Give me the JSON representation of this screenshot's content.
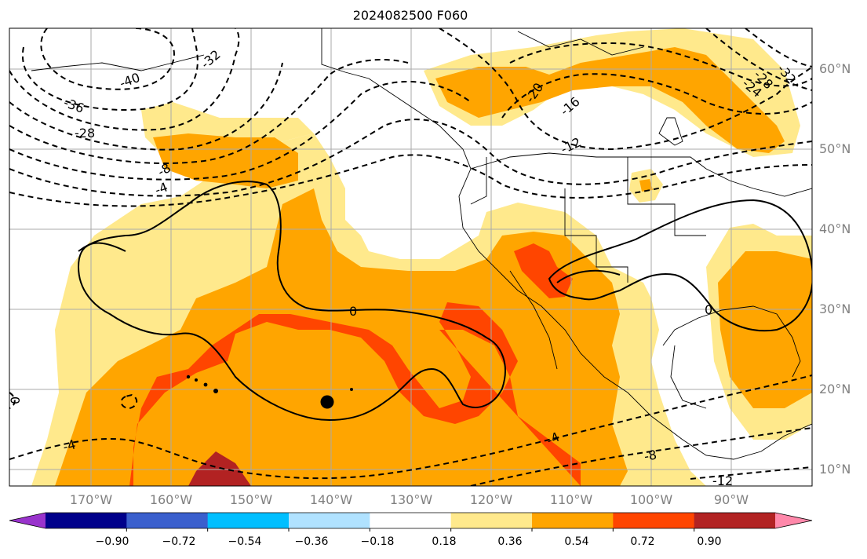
{
  "title": "2024082500 F060",
  "lat_ticks": [
    "60°N",
    "50°N",
    "40°N",
    "30°N",
    "20°N",
    "10°N"
  ],
  "lon_ticks": [
    "170°W",
    "160°W",
    "150°W",
    "140°W",
    "130°W",
    "120°W",
    "110°W",
    "100°W",
    "90°W"
  ],
  "colorbar": {
    "labels": [
      "−0.90",
      "−0.72",
      "−0.54",
      "−0.36",
      "−0.18",
      "0.18",
      "0.36",
      "0.54",
      "0.72",
      "0.90"
    ],
    "colors": [
      "#9933cc",
      "#00008b",
      "#3a5fcd",
      "#00bfff",
      "#b0e2ff",
      "#ffffff",
      "#ffe98c",
      "#ffa500",
      "#ff4500",
      "#b22222",
      "#ff88aa"
    ]
  },
  "contour_labels": [
    "-40",
    "-36",
    "-32",
    "-28",
    "-8",
    "-4",
    "0",
    "0",
    "0",
    "-20",
    "-16",
    "-12",
    "-24",
    "-28",
    "-32",
    "-4",
    "-4",
    "-8",
    "-12"
  ],
  "marker": "storm-position"
}
